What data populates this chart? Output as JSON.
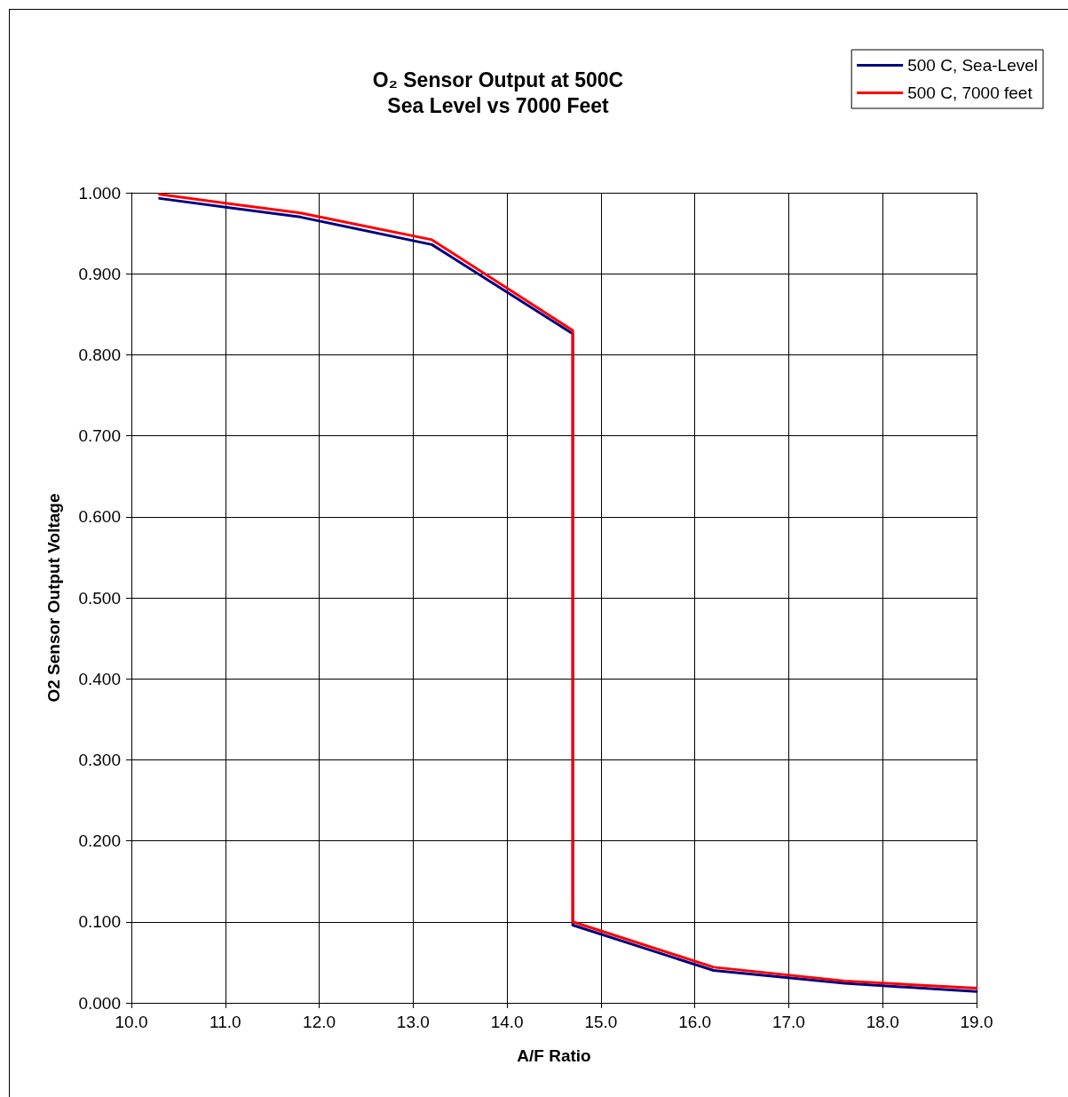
{
  "chart_data": {
    "type": "line",
    "title": "O₂ Sensor Output at 500C",
    "subtitle": "Sea Level vs 7000 Feet",
    "xlabel": "A/F Ratio",
    "ylabel": "O2 Sensor Output Voltage",
    "series": [
      {
        "name": "500 C, Sea-Level",
        "color": "#000080",
        "x": [
          10.3,
          11.8,
          13.2,
          14.7,
          14.7,
          16.2,
          17.6,
          19.0
        ],
        "values": [
          0.993,
          0.97,
          0.936,
          0.826,
          0.096,
          0.04,
          0.024,
          0.014
        ]
      },
      {
        "name": "500 C, 7000 feet",
        "color": "#ff0000",
        "x": [
          10.3,
          11.8,
          13.2,
          14.7,
          14.7,
          16.2,
          17.6,
          19.0
        ],
        "values": [
          0.998,
          0.975,
          0.942,
          0.83,
          0.1,
          0.044,
          0.027,
          0.018
        ]
      }
    ],
    "xlim": [
      10,
      19
    ],
    "ylim": [
      0,
      1
    ],
    "xticks": [
      {
        "value": 10,
        "label": "10.0"
      },
      {
        "value": 11,
        "label": "11.0"
      },
      {
        "value": 12,
        "label": "12.0"
      },
      {
        "value": 13,
        "label": "13.0"
      },
      {
        "value": 14,
        "label": "14.0"
      },
      {
        "value": 15,
        "label": "15.0"
      },
      {
        "value": 16,
        "label": "16.0"
      },
      {
        "value": 17,
        "label": "17.0"
      },
      {
        "value": 18,
        "label": "18.0"
      },
      {
        "value": 19,
        "label": "19.0"
      }
    ],
    "yticks": [
      {
        "value": 0,
        "label": "0.000"
      },
      {
        "value": 0.1,
        "label": "0.100"
      },
      {
        "value": 0.2,
        "label": "0.200"
      },
      {
        "value": 0.3,
        "label": "0.300"
      },
      {
        "value": 0.4,
        "label": "0.400"
      },
      {
        "value": 0.5,
        "label": "0.500"
      },
      {
        "value": 0.6,
        "label": "0.600"
      },
      {
        "value": 0.7,
        "label": "0.700"
      },
      {
        "value": 0.8,
        "label": "0.800"
      },
      {
        "value": 0.9,
        "label": "0.900"
      },
      {
        "value": 1,
        "label": "1.000"
      }
    ],
    "grid": true,
    "legend": "top right",
    "marker": "none",
    "line_style": "solid"
  }
}
